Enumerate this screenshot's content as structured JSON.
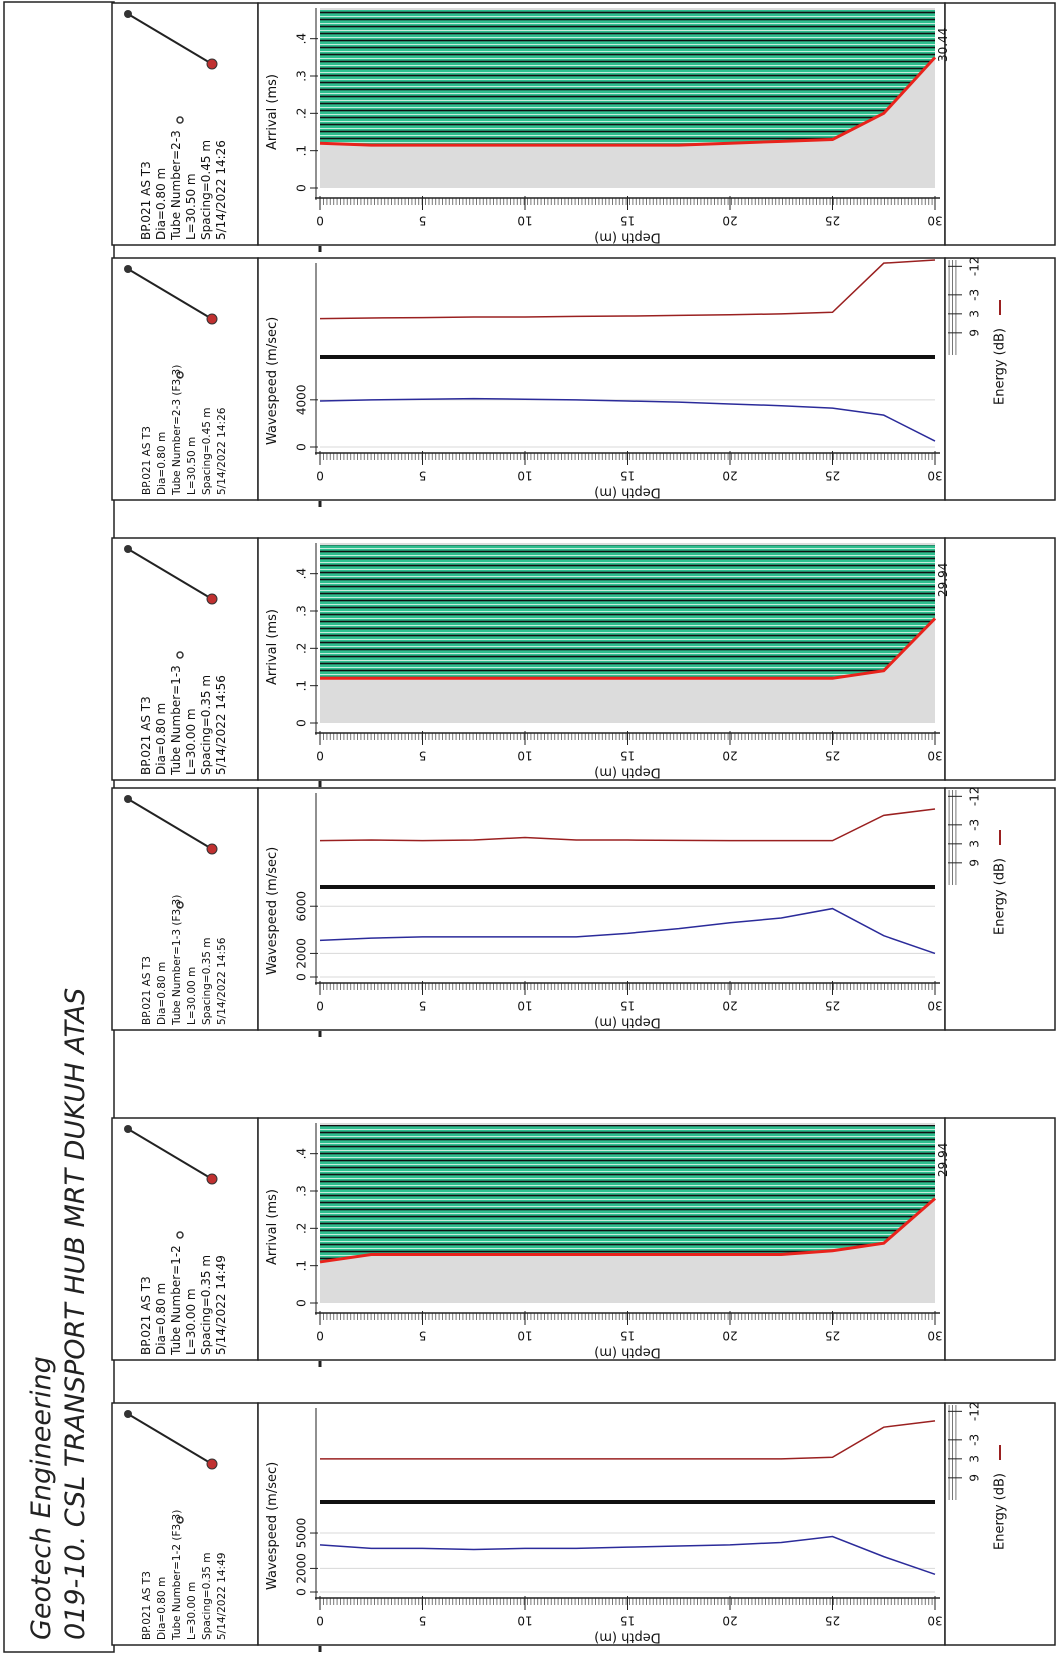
{
  "header": {
    "company": "Geotech Engineering",
    "project": "019-10. CSL TRANSPORT HUB MRT DUKUH ATAS"
  },
  "chart_data": [
    {
      "type": "waterfall",
      "info": [
        "BP.021 AS T3",
        "Dia=0.80 m",
        "Tube Number=2-3",
        "L=30.50 m",
        "Spacing=0.45 m",
        "5/14/2022 14:26"
      ],
      "ylabel": "Arrival (ms)",
      "xlabel": "Depth (m)",
      "x": [
        0,
        2.5,
        5,
        7.5,
        10,
        12.5,
        15,
        17.5,
        20,
        22.5,
        25,
        27.5,
        30
      ],
      "xlim": [
        0,
        30
      ],
      "xticks": [
        0,
        5,
        10,
        15,
        20,
        25,
        30
      ],
      "ylim": [
        0,
        0.45
      ],
      "yticks": [
        0,
        {
          "value": 0.1,
          "label": ".1"
        },
        {
          "value": 0.2,
          "label": ".2"
        },
        {
          "value": 0.3,
          "label": ".3"
        },
        {
          "value": 0.4,
          "label": ".4"
        }
      ],
      "series": [
        {
          "color": "#e8231c",
          "values": [
            0.12,
            0.115,
            0.115,
            0.115,
            0.115,
            0.115,
            0.115,
            0.115,
            0.12,
            0.125,
            0.13,
            0.2,
            0.35
          ]
        }
      ],
      "annotation": 30.44
    },
    {
      "type": "line",
      "info": [
        "BP.021 AS T3",
        "Dia=0.80 m",
        "Tube Number=2-3 (F3,3)",
        "L=30.50 m",
        "Spacing=0.45 m",
        "5/14/2022 14:26"
      ],
      "ylabel": "Wavespeed (m/sec)",
      "y2label": "Energy (dB)",
      "xlabel": "Depth (m)",
      "x": [
        0,
        2.5,
        5,
        7.5,
        10,
        12.5,
        15,
        17.5,
        20,
        22.5,
        25,
        27.5,
        30
      ],
      "xlim": [
        0,
        30
      ],
      "xticks": [
        0,
        5,
        10,
        15,
        20,
        25,
        30
      ],
      "ylim": [
        0,
        7800
      ],
      "yticks": [
        0,
        4000
      ],
      "y2lim": [
        16,
        -14
      ],
      "y2ticks": [
        9,
        3,
        -3,
        -12
      ],
      "series": [
        {
          "color": "#2b2b9a",
          "values": [
            3900,
            4000,
            4050,
            4100,
            4050,
            4000,
            3900,
            3800,
            3650,
            3500,
            3300,
            2700,
            500
          ]
        },
        {
          "color": "#9a2020",
          "axis": "y2",
          "values": [
            4.5,
            4.3,
            4.2,
            4,
            4,
            3.8,
            3.7,
            3.5,
            3.3,
            3,
            2.5,
            -13,
            -14
          ]
        }
      ]
    },
    {
      "type": "waterfall",
      "info": [
        "BP.021 AS T3",
        "Dia=0.80 m",
        "Tube Number=1-3",
        "L=30.00 m",
        "Spacing=0.35 m",
        "5/14/2022 14:56"
      ],
      "ylabel": "Arrival (ms)",
      "xlabel": "Depth (m)",
      "x": [
        0,
        2.5,
        5,
        7.5,
        10,
        12.5,
        15,
        17.5,
        20,
        22.5,
        25,
        27.5,
        30
      ],
      "xlim": [
        0,
        30
      ],
      "xticks": [
        0,
        5,
        10,
        15,
        20,
        25,
        30
      ],
      "ylim": [
        0,
        0.45
      ],
      "yticks": [
        0,
        {
          "value": 0.1,
          "label": ".1"
        },
        {
          "value": 0.2,
          "label": ".2"
        },
        {
          "value": 0.3,
          "label": ".3"
        },
        {
          "value": 0.4,
          "label": ".4"
        }
      ],
      "series": [
        {
          "color": "#e8231c",
          "values": [
            0.12,
            0.12,
            0.12,
            0.12,
            0.12,
            0.12,
            0.12,
            0.12,
            0.12,
            0.12,
            0.12,
            0.14,
            0.28
          ]
        }
      ],
      "annotation": 29.94
    },
    {
      "type": "line",
      "info": [
        "BP.021 AS T3",
        "Dia=0.80 m",
        "Tube Number=1-3 (F3,3)",
        "L=30.00 m",
        "Spacing=0.35 m",
        "5/14/2022 14:56"
      ],
      "ylabel": "Wavespeed (m/sec)",
      "y2label": "Energy (dB)",
      "xlabel": "Depth (m)",
      "x": [
        0,
        2.5,
        5,
        7.5,
        10,
        12.5,
        15,
        17.5,
        20,
        22.5,
        25,
        27.5,
        30
      ],
      "xlim": [
        0,
        30
      ],
      "xticks": [
        0,
        5,
        10,
        15,
        20,
        25,
        30
      ],
      "ylim": [
        0,
        7800
      ],
      "yticks": [
        0,
        2000,
        6000
      ],
      "y2lim": [
        16,
        -14
      ],
      "y2ticks": [
        9,
        3,
        -3,
        -12
      ],
      "series": [
        {
          "color": "#2b2b9a",
          "values": [
            3100,
            3300,
            3400,
            3400,
            3400,
            3400,
            3700,
            4100,
            4600,
            5000,
            5800,
            3500,
            2000
          ]
        },
        {
          "color": "#9a2020",
          "axis": "y2",
          "values": [
            2,
            1.8,
            2,
            1.8,
            1,
            1.8,
            1.8,
            1.9,
            2,
            2,
            2,
            -6,
            -8
          ]
        }
      ]
    },
    {
      "type": "waterfall",
      "info": [
        "BP.021 AS T3",
        "Dia=0.80 m",
        "Tube Number=1-2",
        "L=30.00 m",
        "Spacing=0.35 m",
        "5/14/2022 14:49"
      ],
      "ylabel": "Arrival (ms)",
      "xlabel": "Depth (m)",
      "x": [
        0,
        2.5,
        5,
        7.5,
        10,
        12.5,
        15,
        17.5,
        20,
        22.5,
        25,
        27.5,
        30
      ],
      "xlim": [
        0,
        30
      ],
      "xticks": [
        0,
        5,
        10,
        15,
        20,
        25,
        30
      ],
      "ylim": [
        0,
        0.45
      ],
      "yticks": [
        0,
        {
          "value": 0.1,
          "label": ".1"
        },
        {
          "value": 0.2,
          "label": ".2"
        },
        {
          "value": 0.3,
          "label": ".3"
        },
        {
          "value": 0.4,
          "label": ".4"
        }
      ],
      "series": [
        {
          "color": "#e8231c",
          "values": [
            0.11,
            0.13,
            0.13,
            0.13,
            0.13,
            0.13,
            0.13,
            0.13,
            0.13,
            0.13,
            0.14,
            0.16,
            0.28
          ]
        }
      ],
      "annotation": 29.94
    },
    {
      "type": "line",
      "info": [
        "BP.021 AS T3",
        "Dia=0.80 m",
        "Tube Number=1-2 (F3,3)",
        "L=30.00 m",
        "Spacing=0.35 m",
        "5/14/2022 14:49"
      ],
      "ylabel": "Wavespeed (m/sec)",
      "y2label": "Energy (dB)",
      "xlabel": "Depth (m)",
      "x": [
        0,
        2.5,
        5,
        7.5,
        10,
        12.5,
        15,
        17.5,
        20,
        22.5,
        25,
        27.5,
        30
      ],
      "xlim": [
        0,
        30
      ],
      "xticks": [
        0,
        5,
        10,
        15,
        20,
        25,
        30
      ],
      "ylim": [
        0,
        7800
      ],
      "yticks": [
        0,
        2000,
        5000
      ],
      "y2lim": [
        16,
        -14
      ],
      "y2ticks": [
        9,
        3,
        -3,
        -12
      ],
      "series": [
        {
          "color": "#2b2b9a",
          "values": [
            4000,
            3700,
            3700,
            3600,
            3700,
            3700,
            3800,
            3900,
            4000,
            4200,
            4700,
            3000,
            1500
          ]
        },
        {
          "color": "#9a2020",
          "axis": "y2",
          "values": [
            3,
            3,
            3,
            3,
            3,
            3,
            3,
            3,
            3,
            3,
            2.5,
            -7,
            -9
          ]
        }
      ]
    }
  ]
}
